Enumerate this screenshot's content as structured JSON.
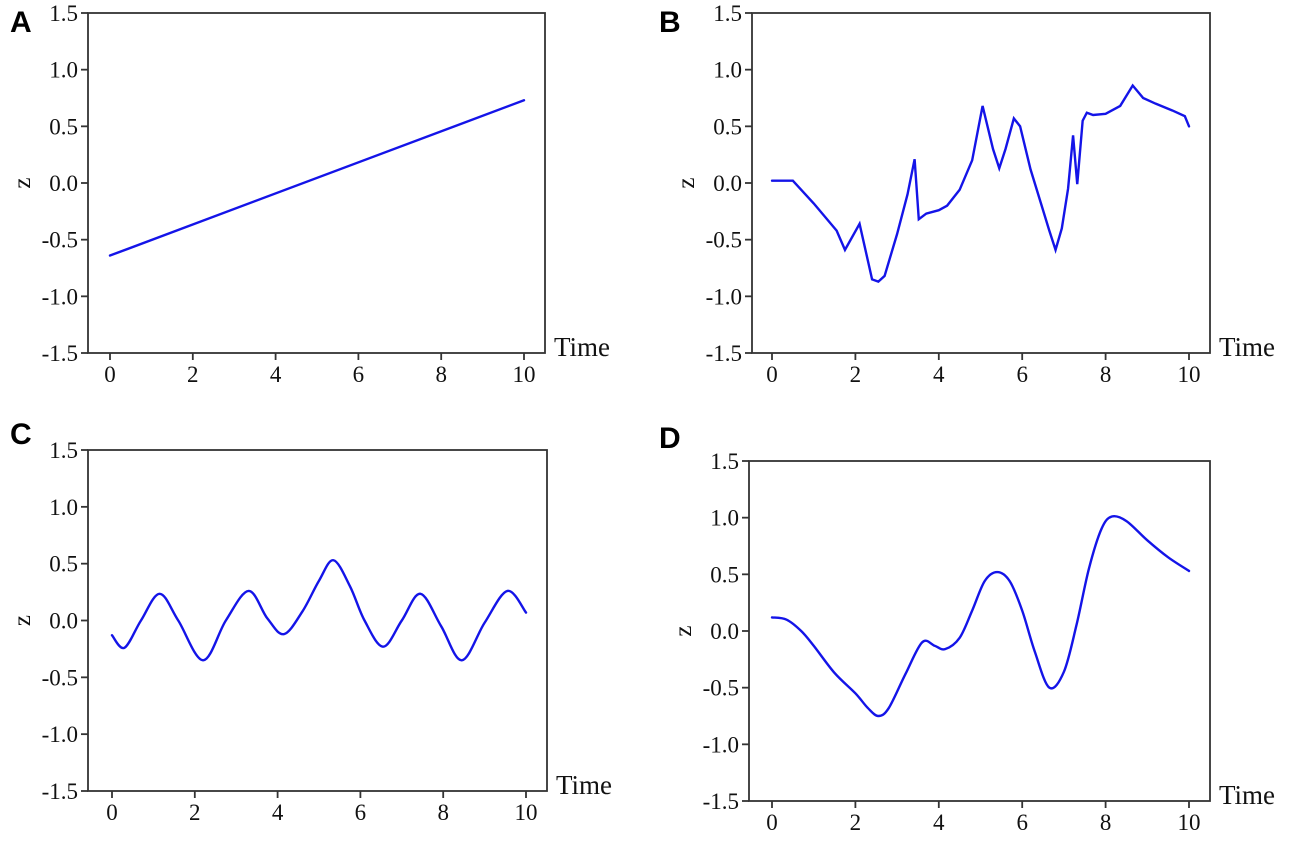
{
  "figure": {
    "background": "#ffffff"
  },
  "style": {
    "line_color": "#1414e8",
    "axis_color": "#333333",
    "text_color": "#111111"
  },
  "chart_data": [
    {
      "type": "line",
      "panel_label": "A",
      "xlabel": "Time",
      "ylabel": "z",
      "xlim": [
        -0.525,
        10.525
      ],
      "ylim": [
        -1.5,
        1.5
      ],
      "xticks": [
        "0",
        "2",
        "4",
        "6",
        "8",
        "10"
      ],
      "yticks": [
        "1.5",
        "1.0",
        "0.5",
        "0.0",
        "-0.5",
        "-1.0",
        "-1.5"
      ],
      "curve": "linear",
      "legend": null,
      "grid": false,
      "points": [
        [
          0,
          -0.64
        ],
        [
          10,
          0.73
        ]
      ]
    },
    {
      "type": "line",
      "panel_label": "B",
      "xlabel": "Time",
      "ylabel": "z",
      "xlim": [
        -0.525,
        10.525
      ],
      "ylim": [
        -1.5,
        1.5
      ],
      "xticks": [
        "0",
        "2",
        "4",
        "6",
        "8",
        "10"
      ],
      "yticks": [
        "1.5",
        "1.0",
        "0.5",
        "0.0",
        "-0.5",
        "-1.0",
        "-1.5"
      ],
      "curve": "linear",
      "legend": null,
      "grid": false,
      "points": [
        [
          0,
          0.02
        ],
        [
          0.5,
          0.02
        ],
        [
          1.0,
          -0.18
        ],
        [
          1.55,
          -0.42
        ],
        [
          1.75,
          -0.59
        ],
        [
          2.1,
          -0.36
        ],
        [
          2.4,
          -0.85
        ],
        [
          2.55,
          -0.87
        ],
        [
          2.7,
          -0.82
        ],
        [
          3.0,
          -0.45
        ],
        [
          3.25,
          -0.1
        ],
        [
          3.42,
          0.21
        ],
        [
          3.52,
          -0.32
        ],
        [
          3.7,
          -0.27
        ],
        [
          4.0,
          -0.24
        ],
        [
          4.2,
          -0.2
        ],
        [
          4.5,
          -0.06
        ],
        [
          4.8,
          0.2
        ],
        [
          5.05,
          0.68
        ],
        [
          5.3,
          0.3
        ],
        [
          5.45,
          0.13
        ],
        [
          5.6,
          0.3
        ],
        [
          5.8,
          0.57
        ],
        [
          5.95,
          0.5
        ],
        [
          6.2,
          0.12
        ],
        [
          6.45,
          -0.18
        ],
        [
          6.65,
          -0.42
        ],
        [
          6.8,
          -0.59
        ],
        [
          6.95,
          -0.4
        ],
        [
          7.1,
          -0.05
        ],
        [
          7.22,
          0.42
        ],
        [
          7.32,
          -0.01
        ],
        [
          7.45,
          0.55
        ],
        [
          7.55,
          0.62
        ],
        [
          7.7,
          0.6
        ],
        [
          8.0,
          0.61
        ],
        [
          8.35,
          0.68
        ],
        [
          8.65,
          0.86
        ],
        [
          8.9,
          0.75
        ],
        [
          9.2,
          0.7
        ],
        [
          9.6,
          0.64
        ],
        [
          9.9,
          0.59
        ],
        [
          10,
          0.5
        ]
      ]
    },
    {
      "type": "line",
      "panel_label": "C",
      "xlabel": "Time",
      "ylabel": "z",
      "xlim": [
        -0.525,
        10.525
      ],
      "ylim": [
        -1.5,
        1.5
      ],
      "xticks": [
        "0",
        "2",
        "4",
        "6",
        "8",
        "10"
      ],
      "yticks": [
        "1.5",
        "1.0",
        "0.5",
        "0.0",
        "-0.5",
        "-1.0",
        "-1.5"
      ],
      "curve": "smooth",
      "legend": null,
      "grid": false,
      "points": [
        [
          0,
          -0.13
        ],
        [
          0.3,
          -0.24
        ],
        [
          0.7,
          0.0
        ],
        [
          1.15,
          0.235
        ],
        [
          1.6,
          0.0
        ],
        [
          2.2,
          -0.35
        ],
        [
          2.75,
          0.0
        ],
        [
          3.3,
          0.26
        ],
        [
          3.75,
          0.02
        ],
        [
          4.15,
          -0.12
        ],
        [
          4.6,
          0.08
        ],
        [
          5.0,
          0.35
        ],
        [
          5.35,
          0.53
        ],
        [
          5.75,
          0.3
        ],
        [
          6.1,
          0.0
        ],
        [
          6.55,
          -0.23
        ],
        [
          7.0,
          0.0
        ],
        [
          7.45,
          0.235
        ],
        [
          7.95,
          -0.05
        ],
        [
          8.45,
          -0.35
        ],
        [
          9.0,
          -0.02
        ],
        [
          9.55,
          0.26
        ],
        [
          10,
          0.07
        ]
      ]
    },
    {
      "type": "line",
      "panel_label": "D",
      "xlabel": "Time",
      "ylabel": "z",
      "xlim": [
        -0.525,
        10.525
      ],
      "ylim": [
        -1.5,
        1.5
      ],
      "xticks": [
        "0",
        "2",
        "4",
        "6",
        "8",
        "10"
      ],
      "yticks": [
        "1.5",
        "1.0",
        "0.5",
        "0.0",
        "-0.5",
        "-1.0",
        "-1.5"
      ],
      "curve": "smooth",
      "legend": null,
      "grid": false,
      "points": [
        [
          0,
          0.12
        ],
        [
          0.35,
          0.1
        ],
        [
          0.7,
          0.0
        ],
        [
          1.0,
          -0.13
        ],
        [
          1.5,
          -0.37
        ],
        [
          2.0,
          -0.55
        ],
        [
          2.3,
          -0.68
        ],
        [
          2.55,
          -0.75
        ],
        [
          2.8,
          -0.68
        ],
        [
          3.2,
          -0.38
        ],
        [
          3.6,
          -0.1
        ],
        [
          3.9,
          -0.13
        ],
        [
          4.15,
          -0.16
        ],
        [
          4.5,
          -0.06
        ],
        [
          4.8,
          0.18
        ],
        [
          5.1,
          0.44
        ],
        [
          5.4,
          0.52
        ],
        [
          5.7,
          0.44
        ],
        [
          6.0,
          0.18
        ],
        [
          6.3,
          -0.18
        ],
        [
          6.65,
          -0.5
        ],
        [
          7.0,
          -0.36
        ],
        [
          7.3,
          0.05
        ],
        [
          7.6,
          0.55
        ],
        [
          7.9,
          0.9
        ],
        [
          8.15,
          1.01
        ],
        [
          8.5,
          0.97
        ],
        [
          9.0,
          0.8
        ],
        [
          9.5,
          0.65
        ],
        [
          10,
          0.53
        ]
      ]
    }
  ]
}
